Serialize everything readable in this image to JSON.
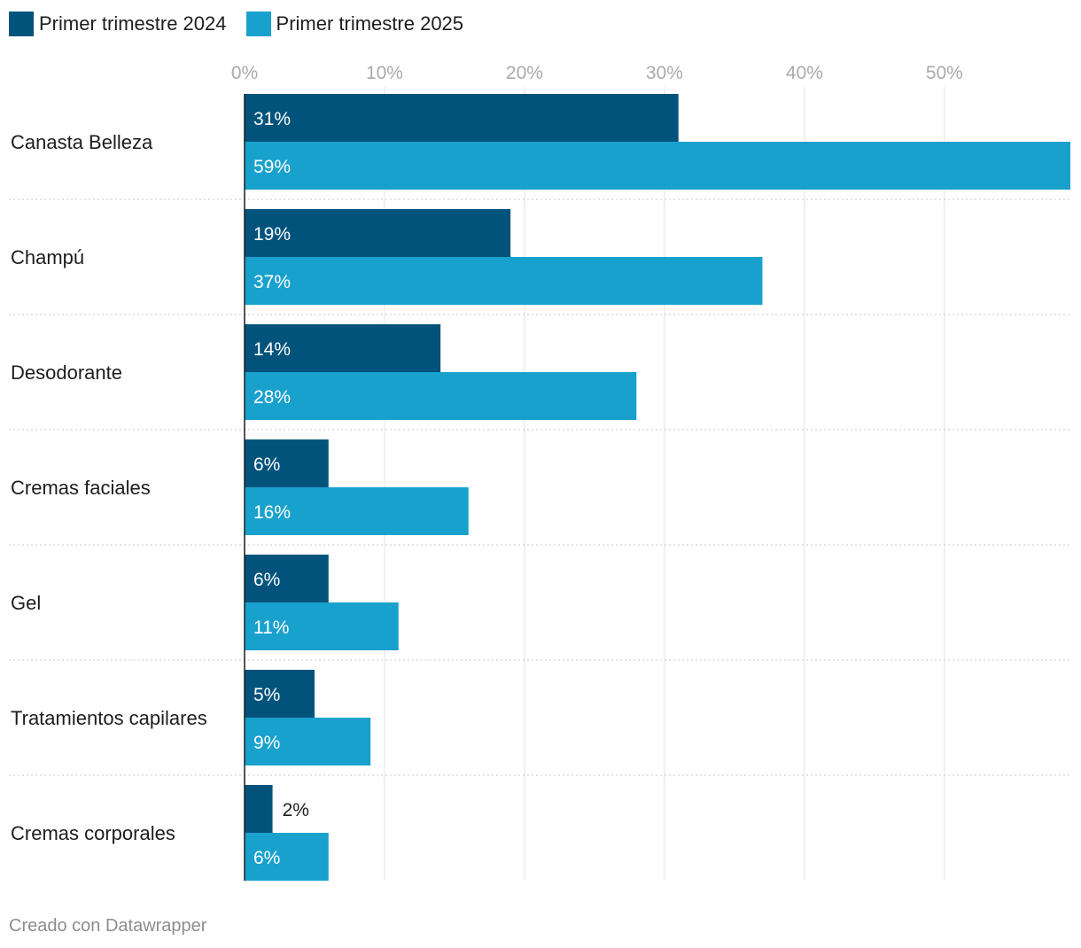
{
  "chart_data": {
    "type": "bar",
    "orientation": "horizontal",
    "categories": [
      "Canasta Belleza",
      "Champú",
      "Desodorante",
      "Cremas faciales",
      "Gel",
      "Tratamientos capilares",
      "Cremas corporales"
    ],
    "series": [
      {
        "name": "Primer trimestre 2024",
        "color": "#02537c",
        "values": [
          31,
          19,
          14,
          6,
          6,
          5,
          2
        ],
        "labels": [
          "31%",
          "19%",
          "14%",
          "6%",
          "6%",
          "5%",
          "2%"
        ]
      },
      {
        "name": "Primer trimestre 2025",
        "color": "#18a1cd",
        "values": [
          59,
          37,
          28,
          16,
          11,
          9,
          6
        ],
        "labels": [
          "59%",
          "37%",
          "28%",
          "16%",
          "11%",
          "9%",
          "6%"
        ]
      }
    ],
    "xlim": [
      0,
      59
    ],
    "xticks": [
      0,
      10,
      20,
      30,
      40,
      50
    ],
    "xtick_labels": [
      "0%",
      "10%",
      "20%",
      "30%",
      "40%",
      "50%"
    ],
    "grid": true,
    "legend_position": "top-left"
  },
  "footer": {
    "text": "Creado con Datawrapper"
  }
}
